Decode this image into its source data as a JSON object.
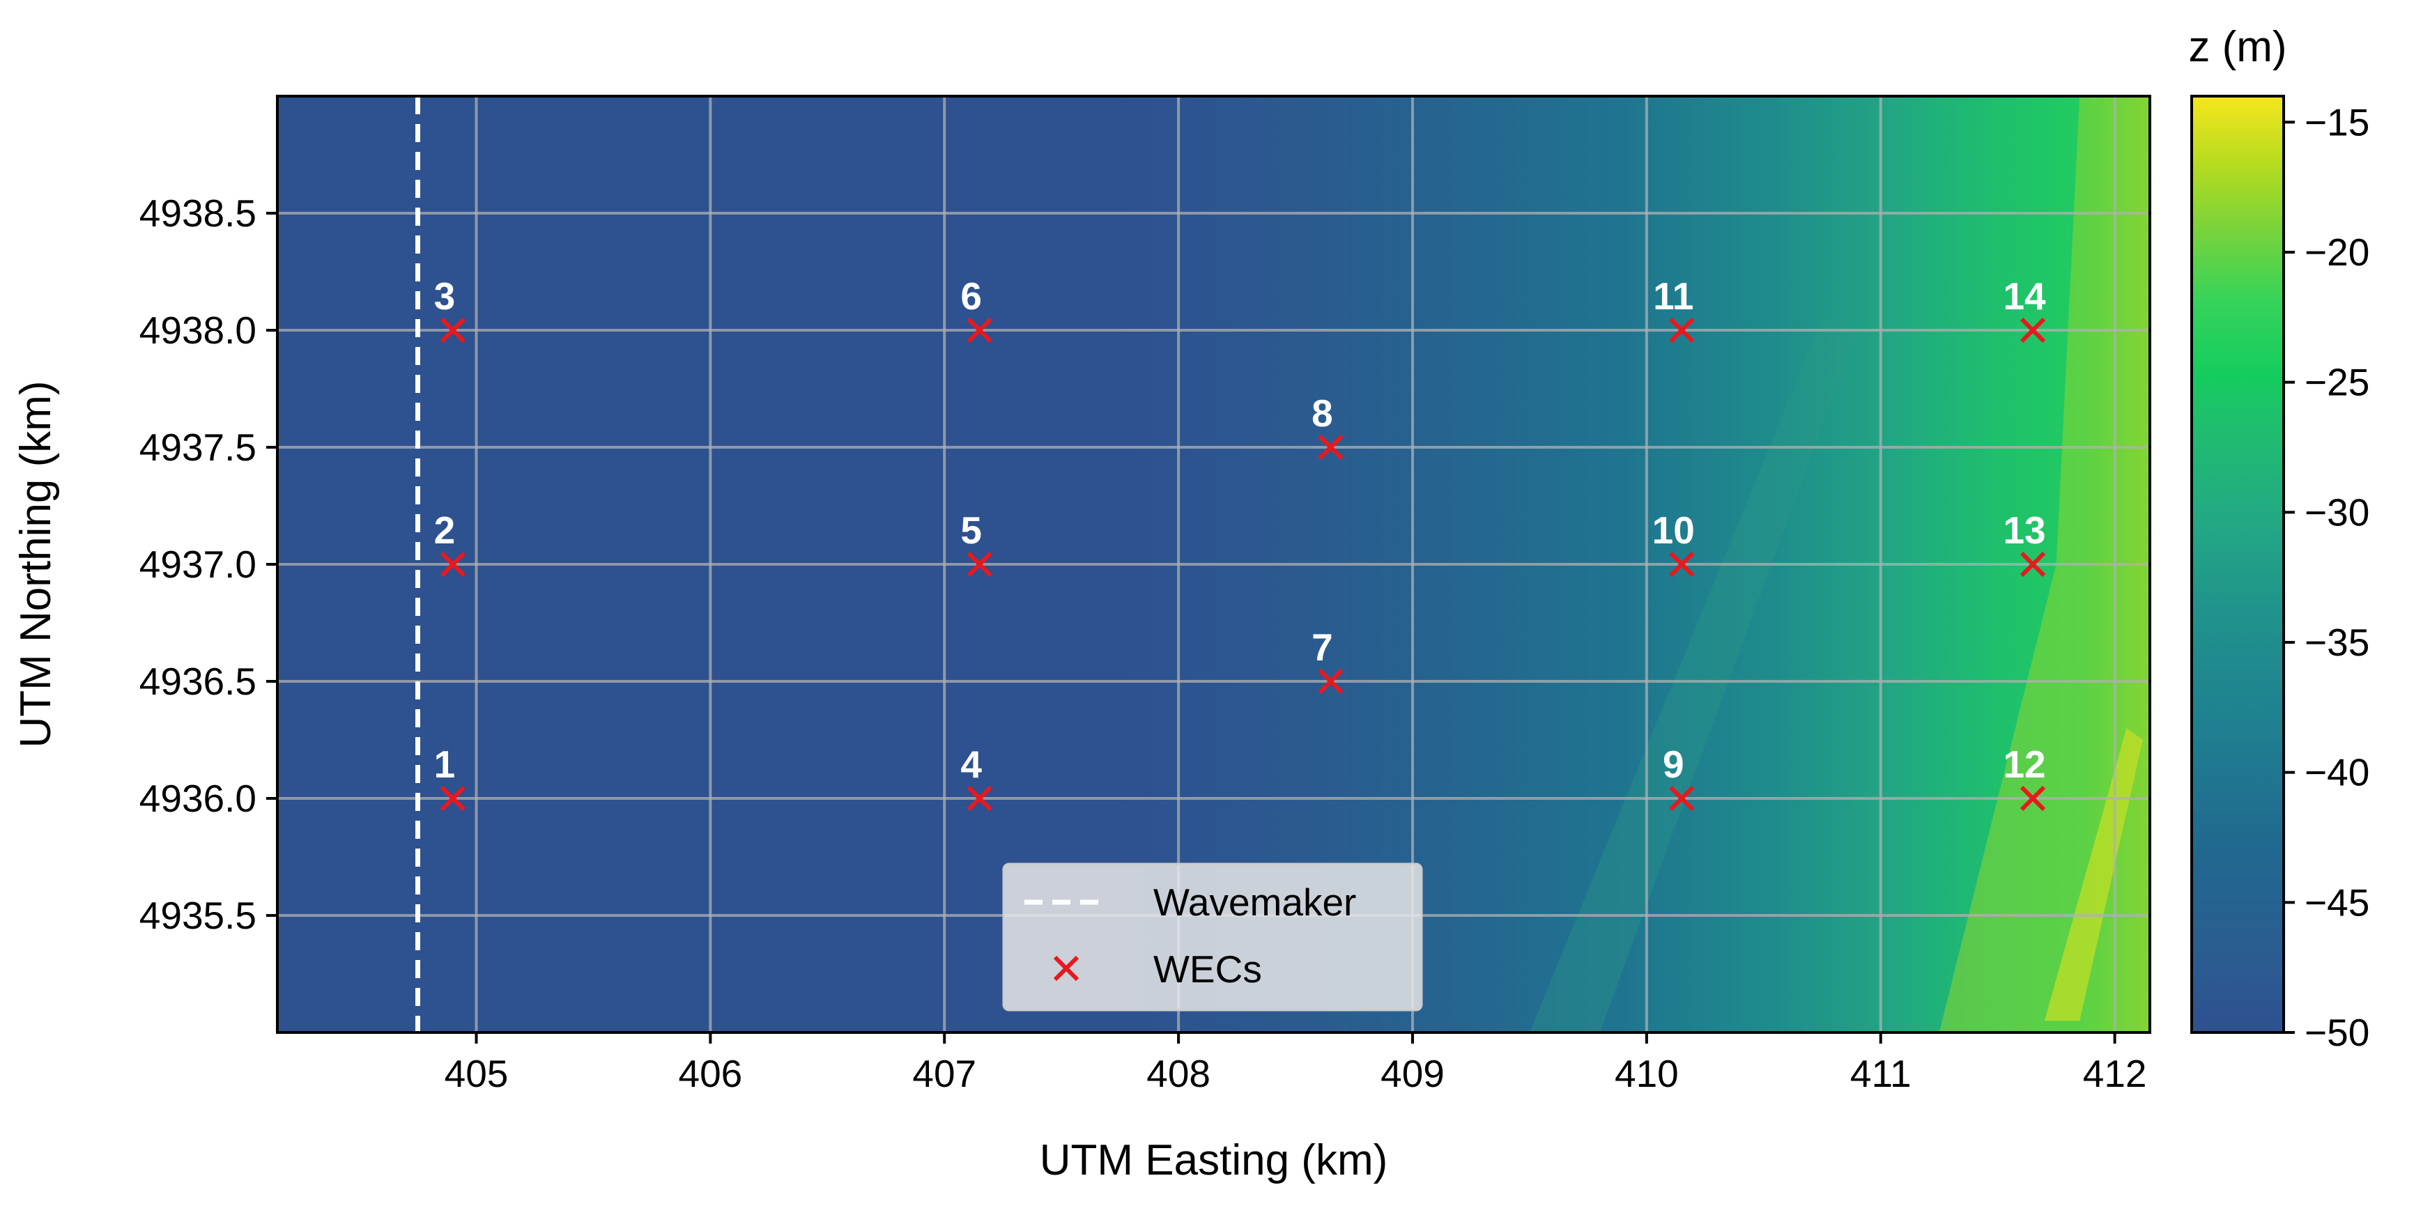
{
  "chart_data": {
    "type": "heatmap",
    "xlabel": "UTM Easting (km)",
    "ylabel": "UTM Northing (km)",
    "xlim": [
      404.15,
      412.15
    ],
    "ylim": [
      4935.0,
      4939.0
    ],
    "xticks": [
      405,
      406,
      407,
      408,
      409,
      410,
      411,
      412
    ],
    "xtick_labels": [
      "405",
      "406",
      "407",
      "408",
      "409",
      "410",
      "411",
      "412"
    ],
    "yticks": [
      4935.5,
      4936.0,
      4936.5,
      4937.0,
      4937.5,
      4938.0,
      4938.5
    ],
    "ytick_labels": [
      "4935.5",
      "4936.0",
      "4936.5",
      "4937.0",
      "4937.5",
      "4938.0",
      "4938.5"
    ],
    "grid": true,
    "colorbar": {
      "label": "z (m)",
      "range": [
        -50,
        -14
      ],
      "ticks": [
        -50,
        -45,
        -40,
        -35,
        -30,
        -25,
        -20,
        -15
      ],
      "tick_labels": [
        "−50",
        "−45",
        "−40",
        "−35",
        "−30",
        "−25",
        "−20",
        "−15"
      ],
      "colormap": [
        "#2e5190",
        "#20698f",
        "#20918c",
        "#23b07c",
        "#18c868",
        "#2dd65a",
        "#78d33a",
        "#c1dd1c",
        "#f1e51d"
      ]
    },
    "wavemaker": {
      "name": "Wavemaker",
      "x": 404.75,
      "style": "dashed",
      "color": "#ffffff"
    },
    "wecs": {
      "name": "WECs",
      "marker": "x",
      "color": "#e8191e",
      "points": [
        {
          "label": "1",
          "x": 404.9,
          "y": 4936.0
        },
        {
          "label": "2",
          "x": 404.9,
          "y": 4937.0
        },
        {
          "label": "3",
          "x": 404.9,
          "y": 4938.0
        },
        {
          "label": "4",
          "x": 407.15,
          "y": 4936.0
        },
        {
          "label": "5",
          "x": 407.15,
          "y": 4937.0
        },
        {
          "label": "6",
          "x": 407.15,
          "y": 4938.0
        },
        {
          "label": "7",
          "x": 408.65,
          "y": 4936.5
        },
        {
          "label": "8",
          "x": 408.65,
          "y": 4937.5
        },
        {
          "label": "9",
          "x": 410.15,
          "y": 4936.0
        },
        {
          "label": "10",
          "x": 410.15,
          "y": 4937.0
        },
        {
          "label": "11",
          "x": 410.15,
          "y": 4938.0
        },
        {
          "label": "12",
          "x": 411.65,
          "y": 4936.0
        },
        {
          "label": "13",
          "x": 411.65,
          "y": 4937.0
        },
        {
          "label": "14",
          "x": 411.65,
          "y": 4938.0
        }
      ]
    },
    "legend": {
      "placement": "lower-center",
      "entries": [
        "Wavemaker",
        "WECs"
      ]
    }
  }
}
